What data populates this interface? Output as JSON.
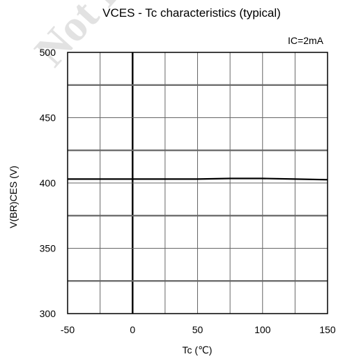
{
  "chart_data": {
    "type": "line",
    "title": "VCES - Tc characteristics (typical)",
    "annotation": "IC=2mA",
    "xlabel": "Tc (℃)",
    "ylabel": "V(BR)CES (V)",
    "xlim": [
      -50,
      150
    ],
    "ylim": [
      300,
      500
    ],
    "x_ticks": [
      -50,
      0,
      50,
      100,
      150
    ],
    "y_ticks": [
      300,
      350,
      400,
      450,
      500
    ],
    "grid": true,
    "series": [
      {
        "x": [
          -50,
          0,
          25,
          50,
          75,
          100,
          125,
          150
        ],
        "y": [
          403,
          403,
          403,
          403,
          403.5,
          403.5,
          403,
          402.5
        ]
      }
    ],
    "watermark": "Not Recommended"
  },
  "colors": {
    "grid": "#666666",
    "emphasis": "#000000",
    "line": "#000000",
    "watermark": "#e2e2e2"
  }
}
